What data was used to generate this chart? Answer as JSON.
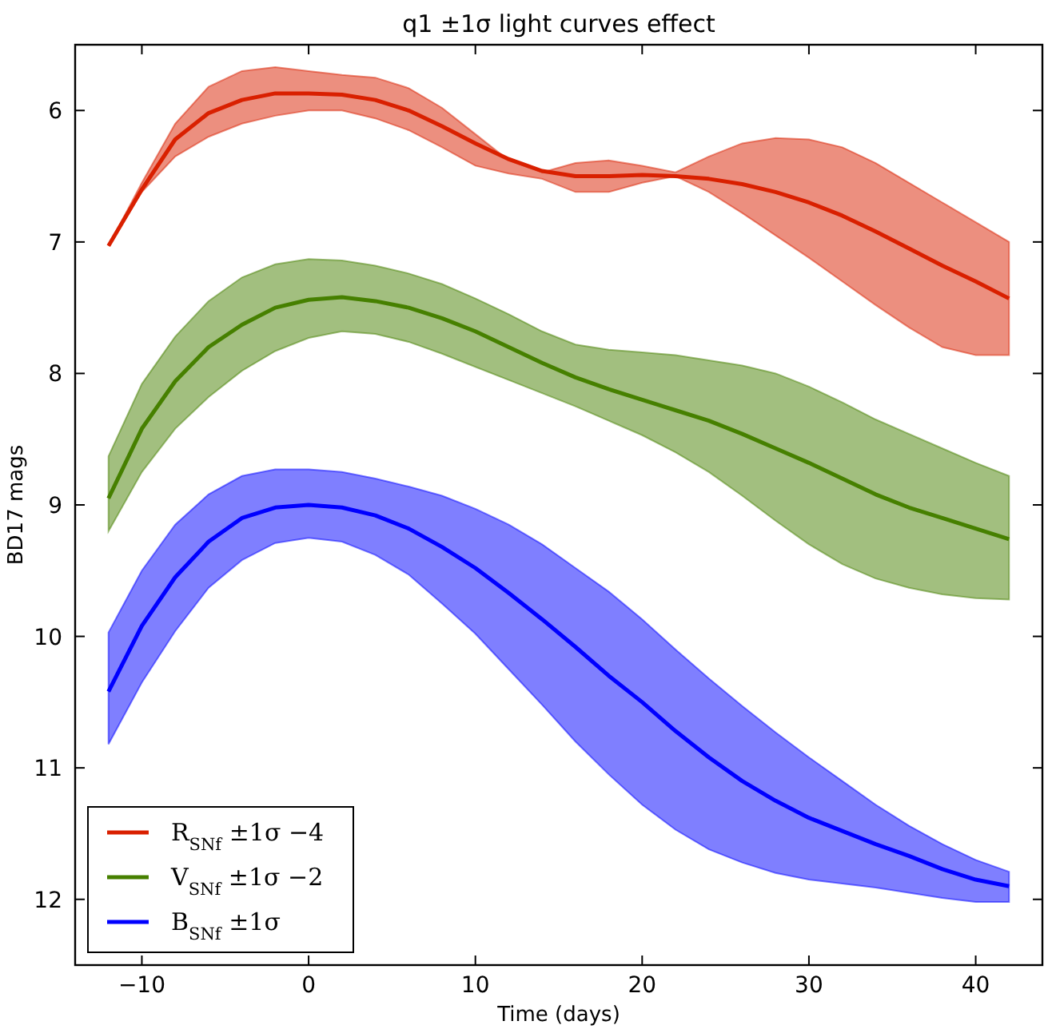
{
  "chart_data": {
    "type": "line",
    "title": "q1 ±1σ light curves effect",
    "xlabel": "Time (days)",
    "ylabel": "BD17 mags",
    "x": [
      -12,
      -10,
      -8,
      -6,
      -4,
      -2,
      0,
      2,
      4,
      6,
      8,
      10,
      12,
      14,
      16,
      18,
      20,
      22,
      24,
      26,
      28,
      30,
      32,
      34,
      36,
      38,
      40,
      42
    ],
    "xlim": [
      -14,
      44
    ],
    "xticks": [
      {
        "value": -10,
        "label": "−10"
      },
      0,
      10,
      20,
      30,
      40
    ],
    "ylim": [
      12.5,
      5.5
    ],
    "yticks": [
      6,
      7,
      8,
      9,
      10,
      11,
      12
    ],
    "grid": false,
    "legend": "bottom left",
    "marker": "none",
    "line_style": "solid",
    "series": [
      {
        "name": "R$_{SNf}$ ±1σ −4",
        "color": "#d92000",
        "values": [
          7.03,
          6.6,
          6.22,
          6.02,
          5.92,
          5.87,
          5.87,
          5.88,
          5.92,
          6.0,
          6.12,
          6.25,
          6.37,
          6.46,
          6.5,
          6.5,
          6.49,
          6.5,
          6.52,
          6.56,
          6.62,
          6.7,
          6.8,
          6.92,
          7.05,
          7.18,
          7.3,
          7.43
        ],
        "upper": [
          7.03,
          6.55,
          6.1,
          5.82,
          5.7,
          5.67,
          5.7,
          5.73,
          5.75,
          5.83,
          5.98,
          6.18,
          6.38,
          6.47,
          6.4,
          6.38,
          6.42,
          6.47,
          6.35,
          6.25,
          6.21,
          6.22,
          6.28,
          6.4,
          6.55,
          6.7,
          6.85,
          7.0
        ],
        "lower": [
          7.03,
          6.62,
          6.35,
          6.2,
          6.1,
          6.04,
          6.0,
          6.0,
          6.06,
          6.15,
          6.28,
          6.42,
          6.48,
          6.52,
          6.62,
          6.62,
          6.55,
          6.5,
          6.62,
          6.78,
          6.95,
          7.12,
          7.3,
          7.48,
          7.65,
          7.8,
          7.86,
          7.86
        ]
      },
      {
        "name": "V$_{SNf}$ ±1σ −2",
        "color": "#468000",
        "values": [
          8.95,
          8.42,
          8.06,
          7.8,
          7.63,
          7.5,
          7.44,
          7.42,
          7.45,
          7.5,
          7.58,
          7.68,
          7.8,
          7.92,
          8.03,
          8.12,
          8.2,
          8.28,
          8.36,
          8.46,
          8.57,
          8.68,
          8.8,
          8.92,
          9.02,
          9.1,
          9.18,
          9.26
        ],
        "upper": [
          8.63,
          8.08,
          7.72,
          7.45,
          7.27,
          7.17,
          7.13,
          7.14,
          7.18,
          7.24,
          7.32,
          7.43,
          7.55,
          7.68,
          7.78,
          7.82,
          7.84,
          7.86,
          7.9,
          7.94,
          8.0,
          8.1,
          8.22,
          8.35,
          8.46,
          8.57,
          8.68,
          8.78
        ],
        "lower": [
          9.2,
          8.75,
          8.42,
          8.18,
          7.98,
          7.83,
          7.73,
          7.68,
          7.7,
          7.76,
          7.85,
          7.95,
          8.05,
          8.15,
          8.25,
          8.36,
          8.47,
          8.6,
          8.75,
          8.93,
          9.12,
          9.3,
          9.45,
          9.56,
          9.63,
          9.68,
          9.71,
          9.72
        ]
      },
      {
        "name": "B$_{SNf}$ ±1σ",
        "color": "#0000ff",
        "values": [
          10.42,
          9.92,
          9.55,
          9.28,
          9.1,
          9.02,
          9.0,
          9.02,
          9.08,
          9.18,
          9.32,
          9.48,
          9.67,
          9.87,
          10.08,
          10.3,
          10.5,
          10.72,
          10.92,
          11.1,
          11.25,
          11.38,
          11.48,
          11.58,
          11.67,
          11.77,
          11.85,
          11.9
        ],
        "upper": [
          9.97,
          9.5,
          9.15,
          8.92,
          8.78,
          8.73,
          8.73,
          8.75,
          8.8,
          8.86,
          8.93,
          9.03,
          9.15,
          9.3,
          9.48,
          9.66,
          9.87,
          10.1,
          10.32,
          10.53,
          10.73,
          10.92,
          11.1,
          11.28,
          11.44,
          11.58,
          11.7,
          11.79
        ],
        "lower": [
          10.82,
          10.35,
          9.96,
          9.63,
          9.42,
          9.29,
          9.25,
          9.28,
          9.38,
          9.53,
          9.75,
          9.98,
          10.25,
          10.52,
          10.8,
          11.05,
          11.28,
          11.47,
          11.62,
          11.72,
          11.8,
          11.85,
          11.88,
          11.91,
          11.95,
          11.99,
          12.02,
          12.02
        ]
      }
    ]
  }
}
